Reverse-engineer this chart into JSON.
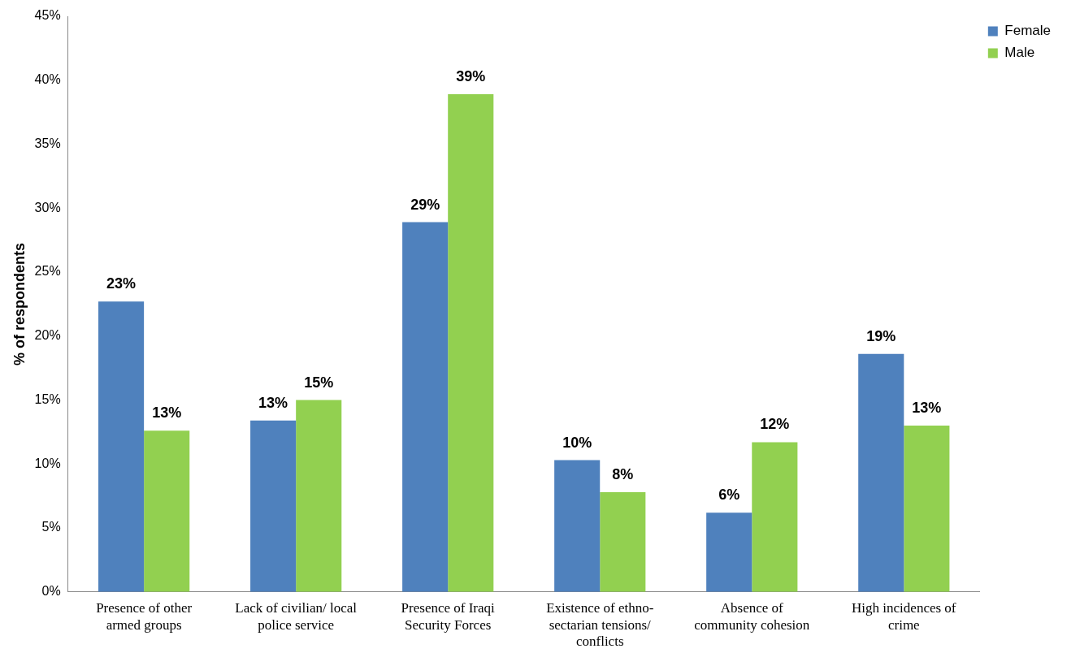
{
  "chart_data": {
    "type": "bar",
    "ylabel": "% of respondents",
    "categories": [
      "Presence of other armed groups",
      "Lack of civilian/ local police service",
      "Presence of Iraqi Security Forces",
      "Existence of ethno- sectarian tensions/ conflicts",
      "Absence of community cohesion",
      "High incidences of crime"
    ],
    "series": [
      {
        "name": "Female",
        "color": "#4f81bd",
        "values": [
          22.7,
          13.4,
          28.9,
          10.3,
          6.2,
          18.6
        ],
        "value_labels": [
          "23%",
          "13%",
          "29%",
          "10%",
          "6%",
          "19%"
        ]
      },
      {
        "name": "Male",
        "color": "#92d050",
        "values": [
          12.6,
          15.0,
          38.9,
          7.8,
          11.7,
          13.0
        ],
        "value_labels": [
          "13%",
          "15%",
          "39%",
          "8%",
          "12%",
          "13%"
        ]
      }
    ],
    "ylim": [
      0,
      45
    ],
    "yticks": [
      {
        "value": 0,
        "label": "0%"
      },
      {
        "value": 5,
        "label": "5%"
      },
      {
        "value": 10,
        "label": "10%"
      },
      {
        "value": 15,
        "label": "15%"
      },
      {
        "value": 20,
        "label": "20%"
      },
      {
        "value": 25,
        "label": "25%"
      },
      {
        "value": 30,
        "label": "30%"
      },
      {
        "value": 35,
        "label": "35%"
      },
      {
        "value": 40,
        "label": "40%"
      },
      {
        "value": 45,
        "label": "45%"
      }
    ],
    "grid": false,
    "legend": "top right"
  }
}
